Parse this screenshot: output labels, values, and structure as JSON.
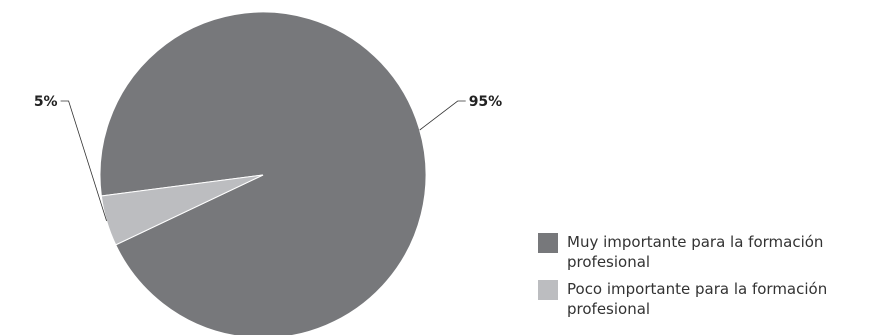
{
  "chart_data": {
    "type": "pie",
    "title": "",
    "categories": [
      "Muy importante para la formación profesional",
      "Poco importante para la formación profesional"
    ],
    "values": [
      95,
      5
    ],
    "value_labels": [
      "95%",
      "5%"
    ],
    "colors": [
      "#77787b",
      "#bcbdc0"
    ],
    "legend_position": "bottom-right"
  }
}
